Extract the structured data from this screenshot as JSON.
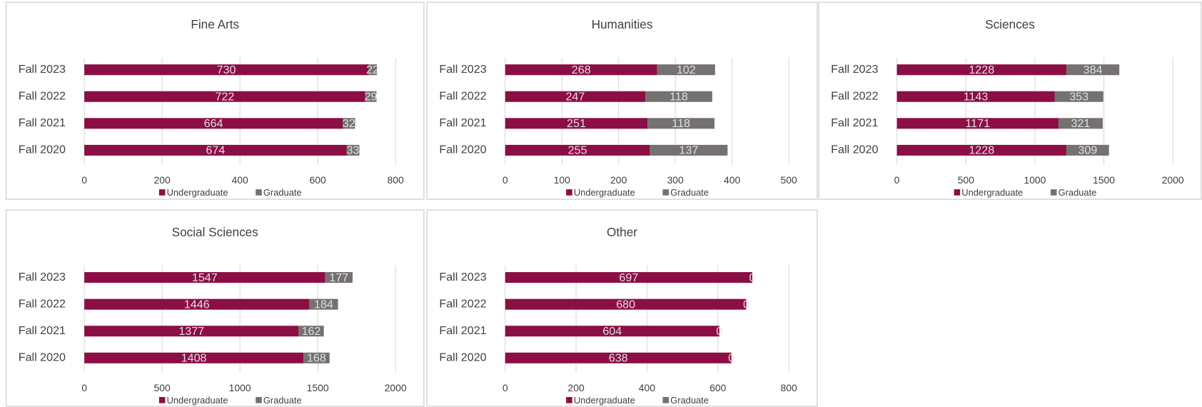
{
  "chart_data": [
    {
      "type": "bar",
      "title": "Fine Arts",
      "categories": [
        "Fall 2023",
        "Fall 2022",
        "Fall 2021",
        "Fall 2020"
      ],
      "series": [
        {
          "name": "Undergraduate",
          "color": "#8b0e45",
          "values": [
            730,
            722,
            664,
            674
          ]
        },
        {
          "name": "Graduate",
          "color": "#767171",
          "values": [
            22,
            29,
            32,
            33
          ]
        }
      ],
      "xlim": [
        0,
        800
      ],
      "xticks": [
        0,
        200,
        400,
        600,
        800
      ],
      "grid": true,
      "legend": "bottom"
    },
    {
      "type": "bar",
      "title": "Humanities",
      "categories": [
        "Fall 2023",
        "Fall 2022",
        "Fall 2021",
        "Fall 2020"
      ],
      "series": [
        {
          "name": "Undergraduate",
          "color": "#8b0e45",
          "values": [
            268,
            247,
            251,
            255
          ]
        },
        {
          "name": "Graduate",
          "color": "#767171",
          "values": [
            102,
            118,
            118,
            137
          ]
        }
      ],
      "xlim": [
        0,
        500
      ],
      "xticks": [
        0,
        100,
        200,
        300,
        400,
        500
      ],
      "grid": true,
      "legend": "bottom"
    },
    {
      "type": "bar",
      "title": "Sciences",
      "categories": [
        "Fall 2023",
        "Fall 2022",
        "Fall 2021",
        "Fall 2020"
      ],
      "series": [
        {
          "name": "Undergraduate",
          "color": "#8b0e45",
          "values": [
            1228,
            1143,
            1171,
            1228
          ]
        },
        {
          "name": "Graduate",
          "color": "#767171",
          "values": [
            384,
            353,
            321,
            309
          ]
        }
      ],
      "xlim": [
        0,
        2000
      ],
      "xticks": [
        0,
        500,
        1000,
        1500,
        2000
      ],
      "grid": true,
      "legend": "bottom"
    },
    {
      "type": "bar",
      "title": "Social Sciences",
      "categories": [
        "Fall 2023",
        "Fall 2022",
        "Fall 2021",
        "Fall 2020"
      ],
      "series": [
        {
          "name": "Undergraduate",
          "color": "#8b0e45",
          "values": [
            1547,
            1446,
            1377,
            1408
          ]
        },
        {
          "name": "Graduate",
          "color": "#767171",
          "values": [
            177,
            184,
            162,
            168
          ]
        }
      ],
      "xlim": [
        0,
        2000
      ],
      "xticks": [
        0,
        500,
        1000,
        1500,
        2000
      ],
      "grid": true,
      "legend": "bottom"
    },
    {
      "type": "bar",
      "title": "Other",
      "categories": [
        "Fall 2023",
        "Fall 2022",
        "Fall 2021",
        "Fall 2020"
      ],
      "series": [
        {
          "name": "Undergraduate",
          "color": "#8b0e45",
          "values": [
            697,
            680,
            604,
            638
          ]
        },
        {
          "name": "Graduate",
          "color": "#767171",
          "values": [
            0,
            0,
            0,
            0
          ]
        }
      ],
      "xlim": [
        0,
        800
      ],
      "xticks": [
        0,
        200,
        400,
        600,
        800
      ],
      "grid": true,
      "legend": "bottom"
    }
  ]
}
